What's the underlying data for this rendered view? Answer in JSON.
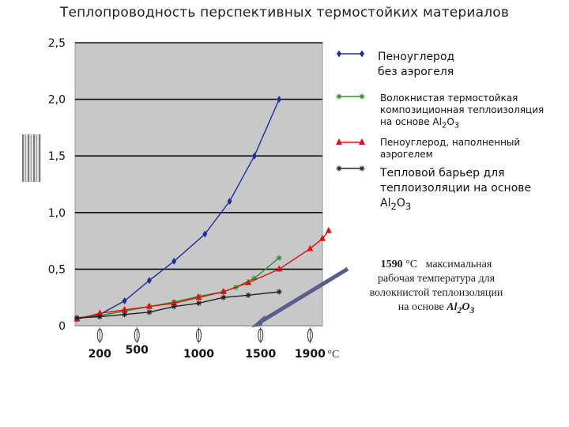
{
  "title": "Теплопроводность перспективных термостойких материалов",
  "chart_data": {
    "type": "line",
    "y_ticks": [
      "2,5",
      "2,0",
      "1,5",
      "1,0",
      "0,5",
      "0"
    ],
    "y_tick_values": [
      2.5,
      2.0,
      1.5,
      1.0,
      0.5,
      0
    ],
    "ylim": [
      0,
      2.5
    ],
    "xlim": [
      0,
      2000
    ],
    "grid": "horizontal",
    "x_ticks": [
      {
        "label": "200",
        "value": 200
      },
      {
        "label": "500",
        "value": 500
      },
      {
        "label": "1000",
        "value": 1000
      },
      {
        "label": "1500",
        "value": 1500
      },
      {
        "label": "1900",
        "value": 1900
      }
    ],
    "x_unit": "°C",
    "legend_position": "right",
    "series": [
      {
        "name_lines": [
          "Пеноуглерод",
          "без аэрогеля"
        ],
        "color": "#1f2f9a",
        "marker": "diamond",
        "points": [
          [
            15,
            0.06
          ],
          [
            200,
            0.1
          ],
          [
            400,
            0.22
          ],
          [
            600,
            0.4
          ],
          [
            800,
            0.57
          ],
          [
            1050,
            0.81
          ],
          [
            1250,
            1.1
          ],
          [
            1450,
            1.5
          ],
          [
            1650,
            2.0
          ]
        ]
      },
      {
        "name_lines": [
          "Волокнистая термостойкая",
          "композиционная теплоизоляция",
          "на основе Al2O3"
        ],
        "color": "#2f8f2f",
        "marker": "star",
        "points": [
          [
            15,
            0.07
          ],
          [
            200,
            0.09
          ],
          [
            400,
            0.13
          ],
          [
            600,
            0.17
          ],
          [
            800,
            0.21
          ],
          [
            1000,
            0.26
          ],
          [
            1200,
            0.3
          ],
          [
            1300,
            0.34
          ],
          [
            1450,
            0.42
          ],
          [
            1650,
            0.6
          ]
        ]
      },
      {
        "name_lines": [
          "Пеноуглерод, наполненный",
          "аэрогелем"
        ],
        "color": "#dd1111",
        "marker": "triangle",
        "points": [
          [
            15,
            0.06
          ],
          [
            200,
            0.11
          ],
          [
            400,
            0.14
          ],
          [
            600,
            0.17
          ],
          [
            800,
            0.2
          ],
          [
            1000,
            0.25
          ],
          [
            1200,
            0.3
          ],
          [
            1400,
            0.38
          ],
          [
            1650,
            0.5
          ],
          [
            1900,
            0.68
          ],
          [
            2000,
            0.77
          ],
          [
            2050,
            0.84
          ]
        ]
      },
      {
        "name_lines": [
          "Тепловой барьер для",
          "теплоизоляции на основе",
          "Al2O3"
        ],
        "color": "#222222",
        "marker": "star",
        "points": [
          [
            15,
            0.07
          ],
          [
            200,
            0.08
          ],
          [
            400,
            0.1
          ],
          [
            600,
            0.12
          ],
          [
            800,
            0.17
          ],
          [
            1000,
            0.2
          ],
          [
            1200,
            0.25
          ],
          [
            1400,
            0.27
          ],
          [
            1650,
            0.3
          ]
        ]
      }
    ],
    "annotation_lines": [
      "1590 °C   максимальная",
      "рабочая  температура для",
      "волокнистой теплоизоляции",
      "на основе Al2O3"
    ]
  }
}
